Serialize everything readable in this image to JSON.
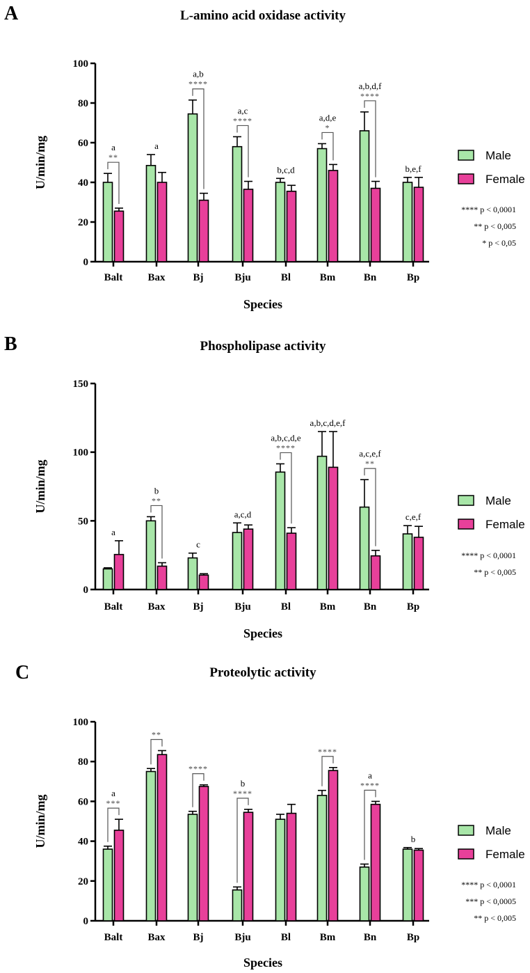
{
  "colors": {
    "male": "#a8e6a8",
    "female": "#e8409a",
    "stroke": "#000000",
    "bracket": "#555555"
  },
  "legend": {
    "male": "Male",
    "female": "Female"
  },
  "chart_data": [
    {
      "panel": "A",
      "type": "bar",
      "title": "L-amino acid oxidase activity",
      "xlabel": "Species",
      "ylabel": "U/min/mg",
      "ylim": [
        0,
        100
      ],
      "yticks": [
        0,
        20,
        40,
        60,
        80,
        100
      ],
      "categories": [
        "Balt",
        "Bax",
        "Bj",
        "Bju",
        "Bl",
        "Bm",
        "Bn",
        "Bp"
      ],
      "series": [
        {
          "name": "Male",
          "values": [
            40,
            48.5,
            74.5,
            58,
            40,
            57,
            66,
            40
          ],
          "errors": [
            4.5,
            5.5,
            7,
            5,
            2,
            2.5,
            9.5,
            2.5
          ]
        },
        {
          "name": "Female",
          "values": [
            25.5,
            40,
            31,
            36.5,
            35.5,
            46,
            37,
            37.5
          ],
          "errors": [
            1.5,
            5,
            3.5,
            4,
            3,
            3,
            3.5,
            5
          ]
        }
      ],
      "annotations": [
        {
          "category": "Balt",
          "text": "a",
          "sig": "**",
          "bracket": true
        },
        {
          "category": "Bax",
          "text": "a",
          "sig": "",
          "bracket": false
        },
        {
          "category": "Bj",
          "text": "a,b",
          "sig": "****",
          "bracket": true
        },
        {
          "category": "Bju",
          "text": "a,c",
          "sig": "****",
          "bracket": true
        },
        {
          "category": "Bl",
          "text": "b,c,d",
          "sig": "",
          "bracket": false
        },
        {
          "category": "Bm",
          "text": "a,d,e",
          "sig": "*",
          "bracket": true
        },
        {
          "category": "Bn",
          "text": "a,b,d,f",
          "sig": "****",
          "bracket": true
        },
        {
          "category": "Bp",
          "text": "b,e,f",
          "sig": "",
          "bracket": false
        }
      ],
      "significance_key": [
        "**** p < 0,0001",
        "** p < 0,005",
        "* p < 0,05"
      ]
    },
    {
      "panel": "B",
      "type": "bar",
      "title": "Phospholipase activity",
      "xlabel": "Species",
      "ylabel": "U/min/mg",
      "ylim": [
        0,
        150
      ],
      "yticks": [
        0,
        50,
        100,
        150
      ],
      "categories": [
        "Balt",
        "Bax",
        "Bj",
        "Bju",
        "Bl",
        "Bm",
        "Bn",
        "Bp"
      ],
      "series": [
        {
          "name": "Male",
          "values": [
            15,
            50,
            23,
            41.5,
            85.5,
            97,
            60,
            40.5
          ],
          "errors": [
            0.8,
            3,
            3.5,
            7,
            6,
            18,
            20,
            6
          ]
        },
        {
          "name": "Female",
          "values": [
            25.5,
            17,
            10.5,
            44,
            41,
            89,
            24.5,
            38
          ],
          "errors": [
            10,
            2.5,
            1,
            3,
            4,
            26,
            4,
            8
          ]
        }
      ],
      "annotations": [
        {
          "category": "Balt",
          "text": "a",
          "sig": "",
          "bracket": false
        },
        {
          "category": "Bax",
          "text": "b",
          "sig": "**",
          "bracket": true
        },
        {
          "category": "Bj",
          "text": "c",
          "sig": "",
          "bracket": false
        },
        {
          "category": "Bju",
          "text": "a,c,d",
          "sig": "",
          "bracket": false
        },
        {
          "category": "Bl",
          "text": "a,b,c,d,e",
          "sig": "****",
          "bracket": true
        },
        {
          "category": "Bm",
          "text": "a,b,c,d,e,f",
          "sig": "",
          "bracket": false
        },
        {
          "category": "Bn",
          "text": "a,c,e,f",
          "sig": "**",
          "bracket": true
        },
        {
          "category": "Bp",
          "text": "c,e,f",
          "sig": "",
          "bracket": false
        }
      ],
      "significance_key": [
        "**** p < 0,0001",
        "** p < 0,005"
      ]
    },
    {
      "panel": "C",
      "type": "bar",
      "title": "Proteolytic activity",
      "xlabel": "Species",
      "ylabel": "U/min/mg",
      "ylim": [
        0,
        100
      ],
      "yticks": [
        0,
        20,
        40,
        60,
        80,
        100
      ],
      "categories": [
        "Balt",
        "Bax",
        "Bj",
        "Bju",
        "Bl",
        "Bm",
        "Bn",
        "Bp"
      ],
      "series": [
        {
          "name": "Male",
          "values": [
            36,
            75,
            53.5,
            15.5,
            51,
            63,
            27,
            36
          ],
          "errors": [
            1.5,
            1.5,
            1.5,
            1.5,
            2.5,
            2.5,
            1.5,
            0.8
          ]
        },
        {
          "name": "Female",
          "values": [
            45.5,
            83.5,
            67.5,
            54.5,
            54,
            75.5,
            58.5,
            35.5
          ],
          "errors": [
            5.5,
            2,
            0.8,
            1.5,
            4.5,
            1.5,
            1.5,
            0.8
          ]
        }
      ],
      "annotations": [
        {
          "category": "Balt",
          "text": "a",
          "sig": "***",
          "bracket": true
        },
        {
          "category": "Bax",
          "text": "",
          "sig": "**",
          "bracket": true
        },
        {
          "category": "Bj",
          "text": "",
          "sig": "****",
          "bracket": true
        },
        {
          "category": "Bju",
          "text": "b",
          "sig": "****",
          "bracket": true
        },
        {
          "category": "Bm",
          "text": "",
          "sig": "****",
          "bracket": true
        },
        {
          "category": "Bn",
          "text": "a",
          "sig": "****",
          "bracket": true
        },
        {
          "category": "Bp",
          "text": "b",
          "sig": "",
          "bracket": false
        }
      ],
      "significance_key": [
        "**** p < 0,0001",
        "*** p < 0,0005",
        "** p < 0,005"
      ]
    }
  ]
}
